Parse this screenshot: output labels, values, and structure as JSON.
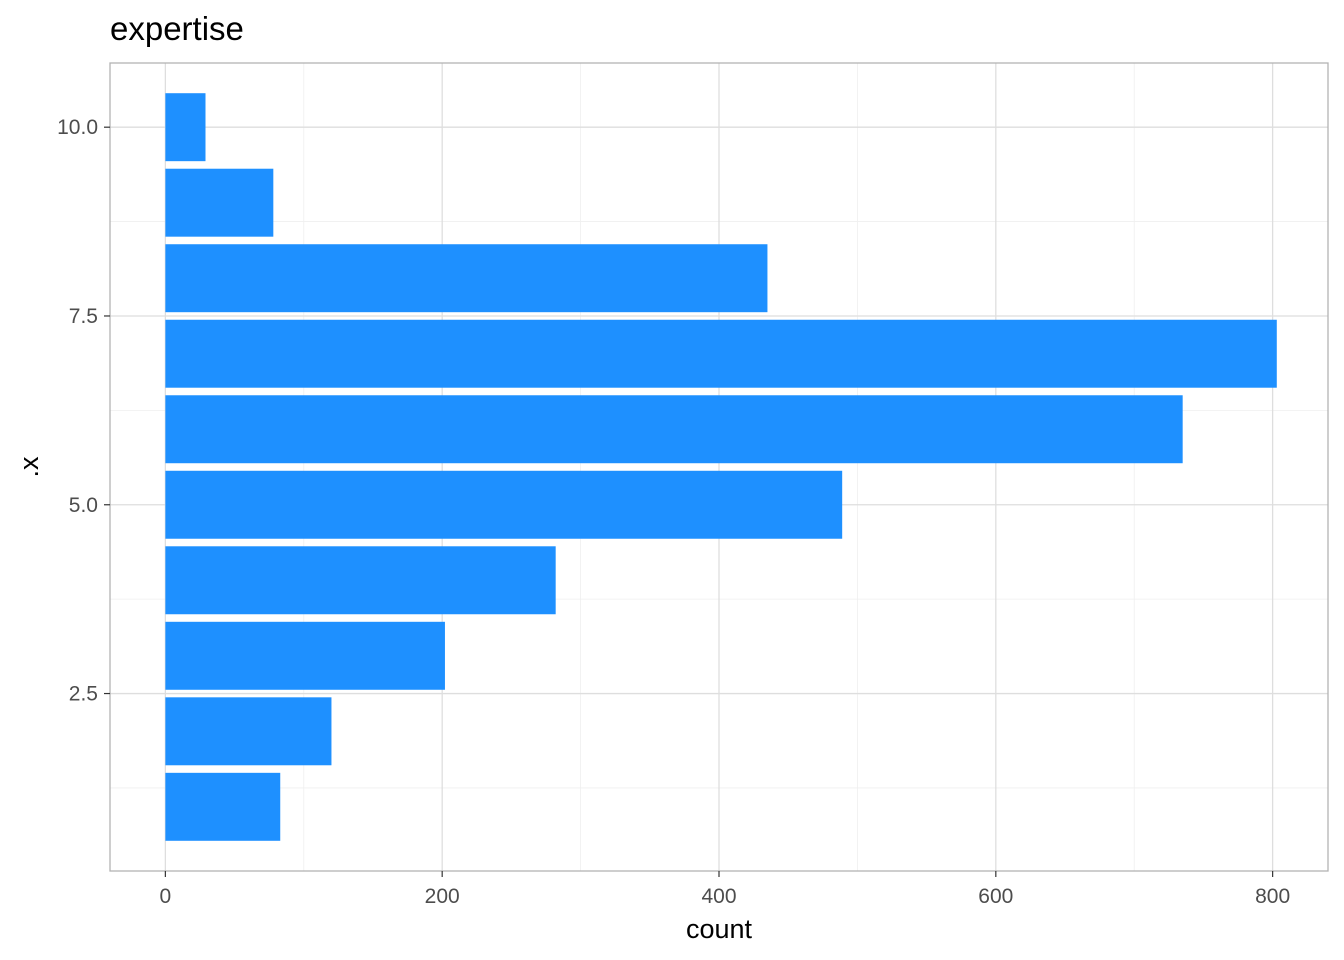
{
  "chart_data": {
    "type": "bar",
    "orientation": "horizontal",
    "title": "expertise",
    "xlabel": "count",
    "ylabel": ".x",
    "categories": [
      1,
      2,
      3,
      4,
      5,
      6,
      7,
      8,
      9,
      10
    ],
    "values": [
      83,
      120,
      202,
      282,
      489,
      735,
      803,
      435,
      78,
      29
    ],
    "xlim": [
      -40,
      840
    ],
    "ylim": [
      0.15,
      10.85
    ],
    "x_ticks": [
      0,
      200,
      400,
      600,
      800
    ],
    "x_tick_labels": [
      "0",
      "200",
      "400",
      "600",
      "800"
    ],
    "y_ticks": [
      2.5,
      5.0,
      7.5,
      10.0
    ],
    "y_tick_labels": [
      "2.5",
      "5.0",
      "7.5",
      "10.0"
    ],
    "bar_color": "#1E90FF",
    "grid": true,
    "legend": "none"
  }
}
